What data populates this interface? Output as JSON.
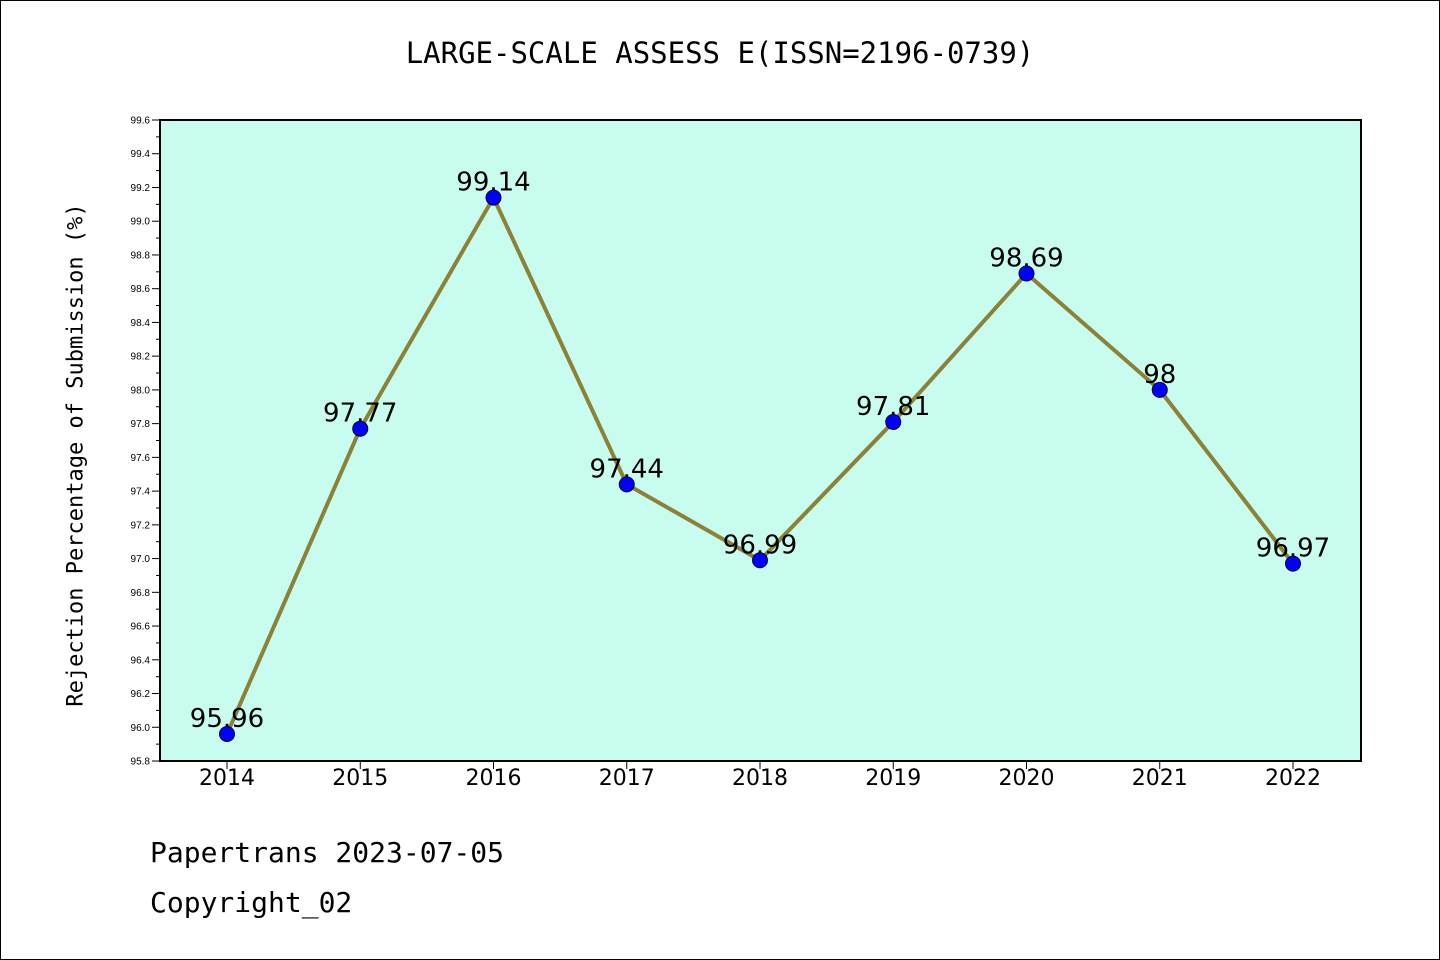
{
  "chart_data": {
    "type": "line",
    "title": "LARGE-SCALE ASSESS E(ISSN=2196-0739)",
    "xlabel": "",
    "ylabel": "Rejection Percentage of Submission (%)",
    "categories": [
      "2014",
      "2015",
      "2016",
      "2017",
      "2018",
      "2019",
      "2020",
      "2021",
      "2022"
    ],
    "values": [
      95.96,
      97.77,
      99.14,
      97.44,
      96.99,
      97.81,
      98.69,
      98,
      96.97
    ],
    "data_labels": [
      "95.96",
      "97.77",
      "99.14",
      "97.44",
      "96.99",
      "97.81",
      "98.69",
      "98",
      "96.97"
    ],
    "ylim": [
      95.8,
      99.6
    ],
    "yticks": [
      "95.8",
      "96.0",
      "96.2",
      "96.4",
      "96.6",
      "96.8",
      "97.0",
      "97.2",
      "97.4",
      "97.6",
      "97.8",
      "98.0",
      "98.2",
      "98.4",
      "98.6",
      "98.8",
      "99.0",
      "99.2",
      "99.4",
      "99.6"
    ],
    "grid": false,
    "colors": {
      "plot_background": "#c8fcef",
      "line": "#8b8237",
      "marker": "#0000ff"
    }
  },
  "footer": {
    "line1": "Papertrans 2023-07-05",
    "line2": "Copyright_02"
  }
}
